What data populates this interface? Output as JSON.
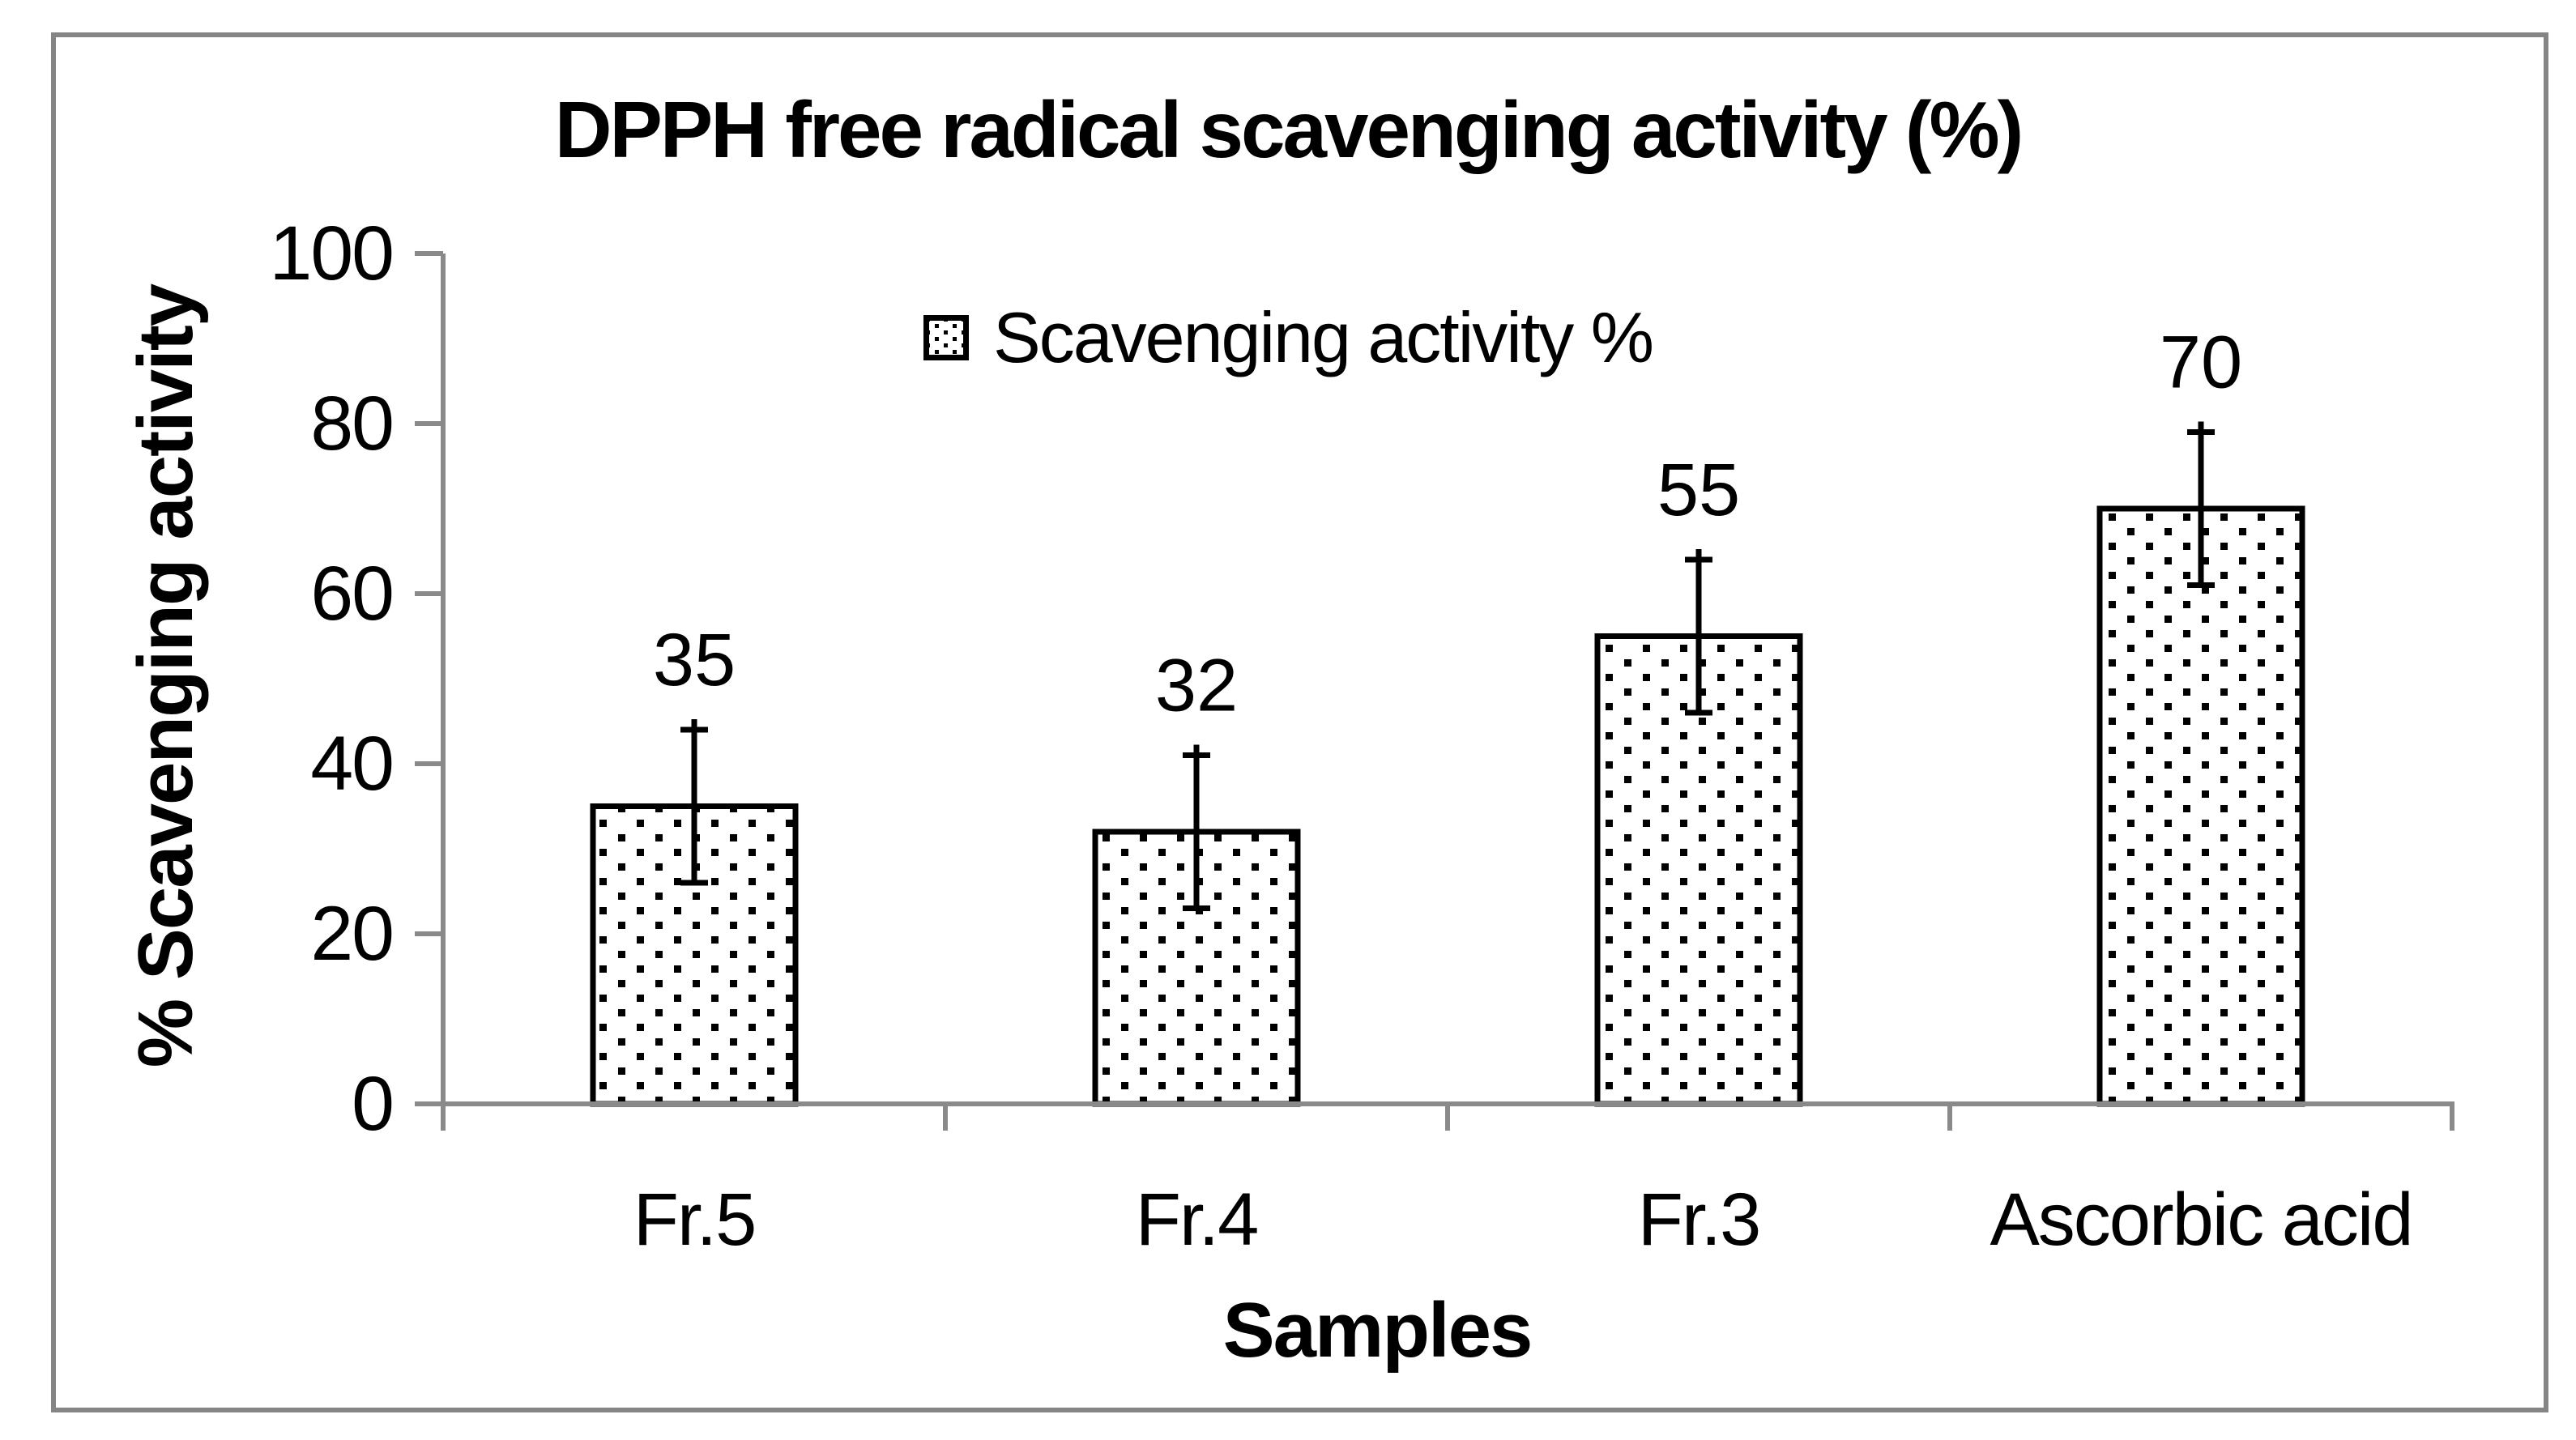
{
  "chart_data": {
    "type": "bar",
    "title": "DPPH free radical scavenging activity (%)",
    "ylabel": "% Scavenging activity",
    "xlabel": "Samples",
    "legend": [
      "Scavenging activity %"
    ],
    "legend_position": "top-center",
    "categories": [
      "Fr.5",
      "Fr.4",
      "Fr.3",
      "Ascorbic acid"
    ],
    "series": [
      {
        "name": "Scavenging activity %",
        "values": [
          35,
          32,
          55,
          70
        ],
        "errors": [
          9,
          9,
          9,
          9
        ],
        "data_labels": [
          "35",
          "32",
          "55",
          "70"
        ]
      }
    ],
    "ylim": [
      0,
      100
    ],
    "yticks": [
      0,
      20,
      40,
      60,
      80,
      100
    ],
    "grid": false,
    "bar_fill": "dot-pattern",
    "style": {
      "background": "#ffffff",
      "frame_color": "#858585",
      "axis_color": "#8a8a8a",
      "bar_stroke": "#000000",
      "dot_color": "#000000",
      "text_color": "#000000"
    }
  }
}
